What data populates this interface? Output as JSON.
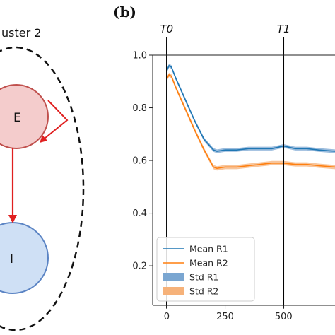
{
  "panel_label": "(b)",
  "left_panel": {
    "cluster_label": "uster 2",
    "node_e": "E",
    "node_i": "I",
    "colors": {
      "e_fill": "#f4cccc",
      "e_stroke": "#c0504d",
      "i_fill": "#cfe0f5",
      "i_stroke": "#5b84c4",
      "arrow": "#e02020"
    }
  },
  "chart_data": {
    "type": "line",
    "xlim": [
      -60,
      720
    ],
    "ylim": [
      0.05,
      1.0
    ],
    "xticks": [
      0,
      250,
      500
    ],
    "yticks": [
      0.2,
      0.4,
      0.6,
      0.8,
      1.0
    ],
    "xtick_labels": [
      "0",
      "250",
      "500"
    ],
    "ytick_labels": [
      "0.2",
      "0.4",
      "0.6",
      "0.8",
      "1.0"
    ],
    "vlines": [
      {
        "label": "T0",
        "x": 0
      },
      {
        "label": "T1",
        "x": 500
      }
    ],
    "legend": {
      "placement": "lower-left",
      "entries": [
        "Mean R1",
        "Mean R2",
        "Std R1",
        "Std R2"
      ]
    },
    "series": [
      {
        "name": "Mean R1",
        "color": "#1f77b4",
        "band_color": "#7aa6d1",
        "x": [
          0,
          10,
          20,
          40,
          80,
          120,
          160,
          200,
          215,
          250,
          300,
          350,
          400,
          450,
          500,
          550,
          600,
          650,
          720
        ],
        "y": [
          0.94,
          0.96,
          0.955,
          0.91,
          0.83,
          0.75,
          0.68,
          0.64,
          0.635,
          0.64,
          0.64,
          0.645,
          0.645,
          0.645,
          0.655,
          0.645,
          0.645,
          0.64,
          0.635
        ],
        "std": 0.007
      },
      {
        "name": "Mean R2",
        "color": "#ff7f0e",
        "band_color": "#f6b27a",
        "x": [
          0,
          10,
          20,
          40,
          80,
          120,
          160,
          200,
          215,
          250,
          300,
          350,
          400,
          450,
          500,
          550,
          600,
          650,
          720
        ],
        "y": [
          0.91,
          0.925,
          0.92,
          0.875,
          0.795,
          0.715,
          0.64,
          0.575,
          0.57,
          0.575,
          0.575,
          0.58,
          0.585,
          0.59,
          0.59,
          0.585,
          0.585,
          0.58,
          0.575
        ],
        "std": 0.008
      }
    ]
  }
}
